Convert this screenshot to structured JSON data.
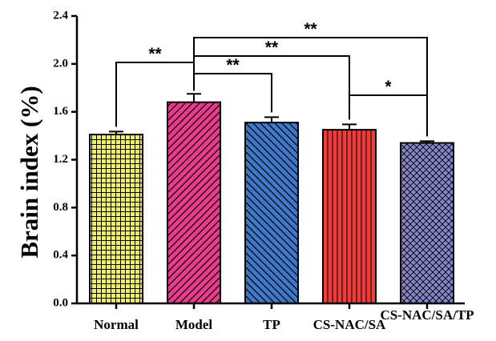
{
  "chart_data": {
    "type": "bar",
    "title": "",
    "xlabel": "",
    "ylabel": "Brain index (%)",
    "ylim": [
      0,
      2.4
    ],
    "yticks": [
      "0.0",
      "0.4",
      "0.8",
      "1.2",
      "1.6",
      "2.0",
      "2.4"
    ],
    "categories": [
      "Normal",
      "Model",
      "TP",
      "CS-NAC/SA",
      "CS-NAC/SA/TP"
    ],
    "values": [
      1.41,
      1.68,
      1.51,
      1.45,
      1.34
    ],
    "errors": [
      0.025,
      0.07,
      0.045,
      0.045,
      0.015
    ],
    "bar_colors": [
      "#f2f25a",
      "#ea3c8e",
      "#3f77c9",
      "#ee3c3c",
      "#8686cc"
    ],
    "bar_patterns": [
      "grid",
      "diagonal-right",
      "diagonal-left",
      "vertical",
      "crosshatch"
    ],
    "grid": false,
    "legend": "none",
    "significance": [
      {
        "from": "Model",
        "to": "Normal",
        "label": "**"
      },
      {
        "from": "Model",
        "to": "TP",
        "label": "**"
      },
      {
        "from": "Model",
        "to": "CS-NAC/SA",
        "label": "**"
      },
      {
        "from": "Model",
        "to": "CS-NAC/SA/TP",
        "label": "**"
      },
      {
        "from": "CS-NAC/SA",
        "to": "CS-NAC/SA/TP",
        "label": "*"
      }
    ]
  }
}
